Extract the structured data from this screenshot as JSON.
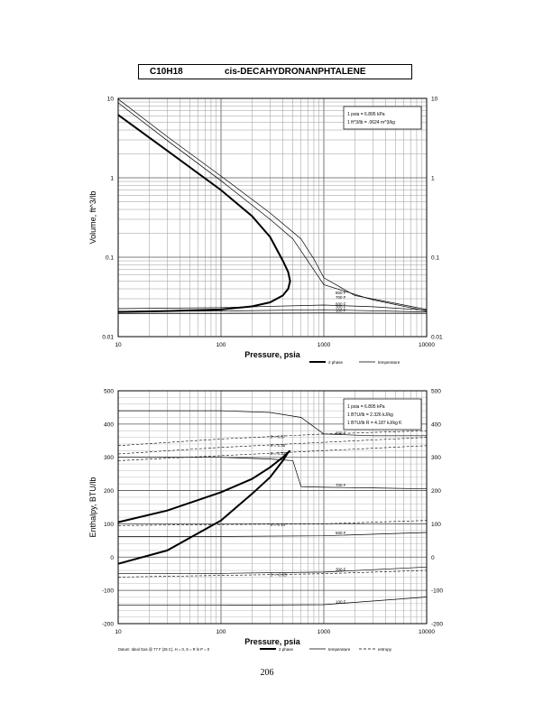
{
  "header": {
    "formula": "C10H18",
    "compound": "cis-DECAHYDRONANPHTALENE"
  },
  "page_number": "206",
  "chart_data": [
    {
      "type": "line",
      "title": "",
      "xlabel": "Pressure,  psia",
      "ylabel": "Volume,  ft^3/lb",
      "xscale": "log",
      "yscale": "log",
      "xlim": [
        10,
        10000
      ],
      "ylim": [
        0.01,
        10
      ],
      "x_ticks": [
        "10",
        "100",
        "1000",
        "10000"
      ],
      "y_ticks": [
        "0.01",
        "0.1",
        "1",
        "10"
      ],
      "grid": true,
      "conversion_box": [
        "1 psia  =  6.895 kPa",
        "1  ft^3/lb  =  .0624 m^3/kg"
      ],
      "legend": [
        {
          "label": "2 phase",
          "style": "thick"
        },
        {
          "label": "temperature",
          "style": "thin"
        }
      ],
      "two_phase": {
        "x": [
          10,
          30,
          100,
          200,
          300,
          400,
          450,
          470,
          450,
          400,
          300,
          200,
          100,
          30,
          10
        ],
        "y": [
          6.2,
          2.2,
          0.7,
          0.33,
          0.18,
          0.09,
          0.065,
          0.05,
          0.04,
          0.033,
          0.027,
          0.024,
          0.022,
          0.021,
          0.0205
        ]
      },
      "isotherms": [
        {
          "label": "800 F",
          "x": [
            10,
            30,
            100,
            300,
            600,
            800,
            1000,
            2000,
            10000
          ],
          "y": [
            9.8,
            3.3,
            1.05,
            0.36,
            0.17,
            0.095,
            0.055,
            0.033,
            0.022
          ]
        },
        {
          "label": "700 F",
          "x": [
            10,
            30,
            100,
            300,
            500,
            1000,
            3000,
            10000
          ],
          "y": [
            8.8,
            2.95,
            0.92,
            0.3,
            0.17,
            0.045,
            0.029,
            0.021
          ]
        },
        {
          "label": "600 F",
          "x": [
            10,
            30,
            100,
            1000,
            3000,
            10000
          ],
          "y": [
            0.0225,
            0.0228,
            0.0232,
            0.025,
            0.0238,
            0.0215
          ]
        },
        {
          "label": "300 F",
          "x": [
            10,
            100,
            1000,
            10000
          ],
          "y": [
            0.0208,
            0.021,
            0.0218,
            0.0205
          ]
        },
        {
          "label": "100 F",
          "x": [
            10,
            100,
            1000,
            10000
          ],
          "y": [
            0.0195,
            0.0196,
            0.0198,
            0.0196
          ]
        }
      ]
    },
    {
      "type": "line",
      "title": "",
      "xlabel": "Pressure,  psia",
      "ylabel": "Enthalpy,  BTU/lb",
      "xscale": "log",
      "yscale": "linear",
      "xlim": [
        10,
        10000
      ],
      "ylim": [
        -200,
        500
      ],
      "x_ticks": [
        "10",
        "100",
        "1000",
        "10000"
      ],
      "y_ticks": [
        "-200",
        "-100",
        "0",
        "100",
        "200",
        "300",
        "400",
        "500"
      ],
      "grid": true,
      "conversion_box": [
        "1 psia  =  6.895 kPa",
        "1 BTU/lb  =  2.326 kJ/kg",
        "1 BTU/lb R  =  4.187 kJ/kg K"
      ],
      "footnote": "Datum: Ideal Gas @ 77 F (25 C),  H = 0,  S = R ln P = 0",
      "legend": [
        {
          "label": "2 phase",
          "style": "thick"
        },
        {
          "label": "temperature",
          "style": "thin"
        },
        {
          "label": "entropy",
          "style": "dashed"
        }
      ],
      "two_phase": {
        "x": [
          10,
          30,
          100,
          200,
          300,
          400,
          450,
          470,
          450,
          400,
          300,
          200,
          100,
          30,
          10
        ],
        "y": [
          105,
          140,
          195,
          235,
          270,
          300,
          315,
          320,
          315,
          290,
          240,
          190,
          110,
          20,
          -20
        ]
      },
      "isotherms": [
        {
          "label": "800 F",
          "x": [
            10,
            100,
            300,
            600,
            1000,
            3000,
            10000
          ],
          "y": [
            440,
            440,
            435,
            420,
            370,
            365,
            365
          ]
        },
        {
          "label": "700 F",
          "x": [
            10,
            100,
            300,
            500,
            600,
            1000,
            3000,
            10000
          ],
          "y": [
            300,
            300,
            295,
            290,
            212,
            210,
            208,
            205
          ]
        },
        {
          "label": "500 F",
          "x": [
            10,
            100,
            1000,
            10000
          ],
          "y": [
            62,
            62,
            64,
            74
          ]
        },
        {
          "label": "300 F",
          "x": [
            10,
            100,
            1000,
            10000
          ],
          "y": [
            -50,
            -49,
            -45,
            -30
          ]
        },
        {
          "label": "100 F",
          "x": [
            10,
            100,
            1000,
            10000
          ],
          "y": [
            -145,
            -145,
            -143,
            -120
          ]
        }
      ],
      "entropy_lines": [
        {
          "label": "S = 0.37",
          "x": [
            10,
            100,
            1000,
            10000
          ],
          "y": [
            335,
            355,
            370,
            380
          ]
        },
        {
          "label": "S = 0.35",
          "x": [
            10,
            100,
            1000,
            10000
          ],
          "y": [
            310,
            330,
            345,
            360
          ]
        },
        {
          "label": "S = 0.33",
          "x": [
            10,
            100,
            1000,
            10000
          ],
          "y": [
            290,
            305,
            320,
            335
          ]
        },
        {
          "label": "S = 0.14",
          "x": [
            10,
            100,
            1000,
            10000
          ],
          "y": [
            95,
            98,
            100,
            110
          ]
        },
        {
          "label": "S = -0.05",
          "x": [
            10,
            100,
            1000,
            10000
          ],
          "y": [
            -60,
            -55,
            -50,
            -40
          ]
        }
      ]
    }
  ]
}
